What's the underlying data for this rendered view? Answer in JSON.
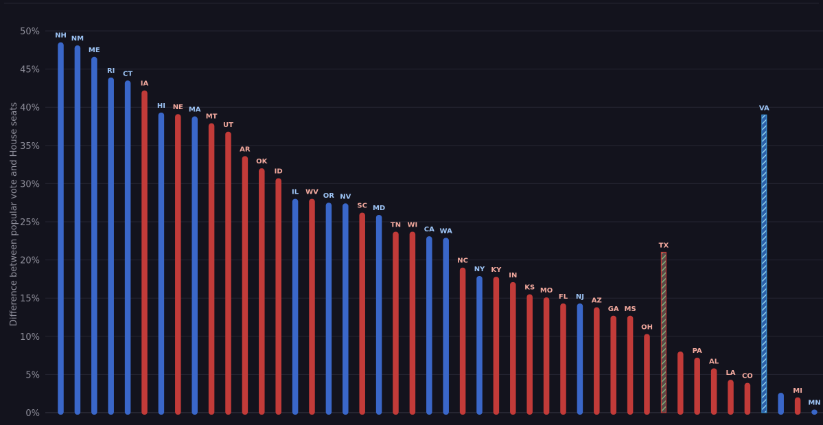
{
  "chart_data": {
    "type": "bar",
    "title": "",
    "xlabel": "",
    "ylabel": "Difference between popular vote and House seats",
    "ylim": [
      0,
      50
    ],
    "yticks": [
      0,
      5,
      10,
      15,
      20,
      25,
      30,
      35,
      40,
      45,
      50
    ],
    "ytick_labels": [
      "0%",
      "5%",
      "10%",
      "15%",
      "20%",
      "25%",
      "30%",
      "35%",
      "40%",
      "45%",
      "50%"
    ],
    "grid": true,
    "legend": "none",
    "colors": {
      "blue": "#3a67c9",
      "red": "#c23b39",
      "blue_label": "#9dc4f5",
      "red_label": "#f2a99e",
      "grid": "#262633",
      "background": "#13131d"
    },
    "bars": [
      {
        "label": "NH",
        "value": 48.5,
        "party": "blue"
      },
      {
        "label": "NM",
        "value": 48.1,
        "party": "blue"
      },
      {
        "label": "ME",
        "value": 46.6,
        "party": "blue"
      },
      {
        "label": "RI",
        "value": 43.9,
        "party": "blue"
      },
      {
        "label": "CT",
        "value": 43.5,
        "party": "blue"
      },
      {
        "label": "IA",
        "value": 42.2,
        "party": "red"
      },
      {
        "label": "HI",
        "value": 39.3,
        "party": "blue"
      },
      {
        "label": "NE",
        "value": 39.1,
        "party": "red"
      },
      {
        "label": "MA",
        "value": 38.8,
        "party": "blue"
      },
      {
        "label": "MT",
        "value": 37.9,
        "party": "red"
      },
      {
        "label": "UT",
        "value": 36.8,
        "party": "red"
      },
      {
        "label": "AR",
        "value": 33.6,
        "party": "red"
      },
      {
        "label": "OK",
        "value": 32.0,
        "party": "red"
      },
      {
        "label": "ID",
        "value": 30.7,
        "party": "red"
      },
      {
        "label": "IL",
        "value": 28.0,
        "party": "blue"
      },
      {
        "label": "WV",
        "value": 28.0,
        "party": "red"
      },
      {
        "label": "OR",
        "value": 27.5,
        "party": "blue"
      },
      {
        "label": "NV",
        "value": 27.4,
        "party": "blue"
      },
      {
        "label": "SC",
        "value": 26.2,
        "party": "red"
      },
      {
        "label": "MD",
        "value": 25.9,
        "party": "blue"
      },
      {
        "label": "TN",
        "value": 23.7,
        "party": "red"
      },
      {
        "label": "WI",
        "value": 23.7,
        "party": "red"
      },
      {
        "label": "CA",
        "value": 23.1,
        "party": "blue"
      },
      {
        "label": "WA",
        "value": 22.9,
        "party": "blue"
      },
      {
        "label": "NC",
        "value": 19.0,
        "party": "red"
      },
      {
        "label": "NY",
        "value": 17.9,
        "party": "blue"
      },
      {
        "label": "KY",
        "value": 17.8,
        "party": "red"
      },
      {
        "label": "IN",
        "value": 17.1,
        "party": "red"
      },
      {
        "label": "KS",
        "value": 15.5,
        "party": "red"
      },
      {
        "label": "MO",
        "value": 15.1,
        "party": "red"
      },
      {
        "label": "FL",
        "value": 14.3,
        "party": "red"
      },
      {
        "label": "NJ",
        "value": 14.3,
        "party": "blue"
      },
      {
        "label": "AZ",
        "value": 13.8,
        "party": "red"
      },
      {
        "label": "GA",
        "value": 12.7,
        "party": "red"
      },
      {
        "label": "MS",
        "value": 12.7,
        "party": "red"
      },
      {
        "label": "OH",
        "value": 10.3,
        "party": "red"
      },
      {
        "label": "TX",
        "value": 21.0,
        "party": "red",
        "hatched": true
      },
      {
        "label": "",
        "value": 8.0,
        "party": "red"
      },
      {
        "label": "PA",
        "value": 7.2,
        "party": "red"
      },
      {
        "label": "AL",
        "value": 5.8,
        "party": "red"
      },
      {
        "label": "LA",
        "value": 4.3,
        "party": "red"
      },
      {
        "label": "CO",
        "value": 3.9,
        "party": "red"
      },
      {
        "label": "VA",
        "value": 39.0,
        "party": "blue",
        "hatched": true
      },
      {
        "label": "",
        "value": 2.6,
        "party": "blue"
      },
      {
        "label": "MI",
        "value": 2.0,
        "party": "red"
      },
      {
        "label": "MN",
        "value": 0.4,
        "party": "blue"
      }
    ]
  }
}
